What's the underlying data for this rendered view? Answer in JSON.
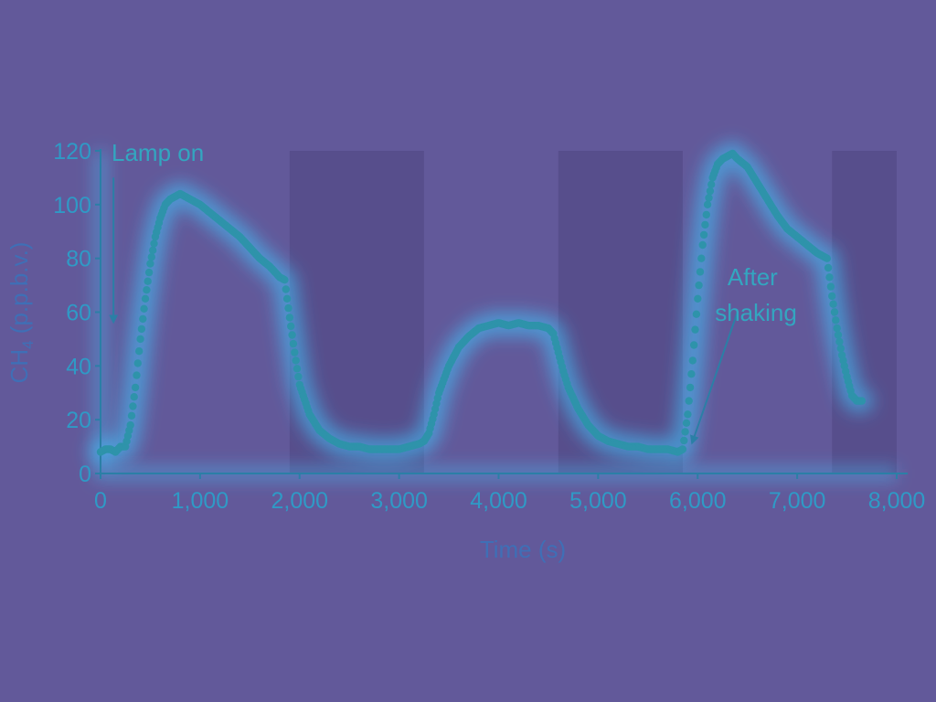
{
  "colors": {
    "background": "#62599a",
    "dark_band": "#574e8c",
    "series": "#2e93aa",
    "glow": "#3fc8ff",
    "glow_strong": "#7ef46a",
    "axis": "#2b7fa6",
    "tick_text": "#2f9ac6",
    "axis_title": "#3f6fb6"
  },
  "chart_data": {
    "type": "scatter",
    "title": "",
    "xlabel": "Time (s)",
    "ylabel_main": "CH",
    "ylabel_sub": "4",
    "ylabel_suffix": " (p.p.b.v.)",
    "xlim": [
      0,
      8000
    ],
    "ylim": [
      0,
      120
    ],
    "x_ticks": [
      0,
      1000,
      2000,
      3000,
      4000,
      5000,
      6000,
      7000,
      8000
    ],
    "x_tick_labels": [
      "0",
      "1,000",
      "2,000",
      "3,000",
      "4,000",
      "5,000",
      "6,000",
      "7,000",
      "8,000"
    ],
    "y_ticks": [
      0,
      20,
      40,
      60,
      80,
      100,
      120
    ],
    "y_tick_labels": [
      "0",
      "20",
      "40",
      "60",
      "80",
      "100",
      "120"
    ],
    "grid": false,
    "legend": "none",
    "dark_periods": [
      [
        1900,
        3250
      ],
      [
        4600,
        5850
      ],
      [
        7350,
        8000
      ]
    ],
    "annotations": [
      {
        "text": "Lamp on",
        "arrow_from": [
          130,
          110
        ],
        "arrow_to": [
          130,
          57
        ]
      },
      {
        "text": "After shaking",
        "lines": [
          "After",
          "shaking"
        ],
        "arrow_from": [
          6400,
          60
        ],
        "arrow_to": [
          5950,
          12
        ]
      }
    ],
    "series": [
      {
        "x": [
          0,
          50,
          100,
          150,
          200,
          250,
          300,
          350,
          400,
          450,
          500,
          550,
          600,
          650,
          700,
          750,
          800,
          850,
          900,
          1000,
          1100,
          1200,
          1300,
          1400,
          1500,
          1600,
          1700,
          1750,
          1800,
          1850,
          1900,
          1950,
          2000,
          2100,
          2200,
          2300,
          2400,
          2500,
          2600,
          2700,
          2800,
          2900,
          3000,
          3100,
          3200,
          3250,
          3300,
          3350,
          3400,
          3500,
          3600,
          3700,
          3800,
          3900,
          4000,
          4100,
          4200,
          4300,
          4400,
          4500,
          4550,
          4600,
          4650,
          4700,
          4800,
          4900,
          5000,
          5100,
          5200,
          5300,
          5400,
          5500,
          5600,
          5700,
          5800,
          5850,
          5900,
          5950,
          6000,
          6050,
          6100,
          6150,
          6200,
          6250,
          6300,
          6350,
          6400,
          6500,
          6600,
          6700,
          6800,
          6900,
          7000,
          7100,
          7200,
          7300,
          7350,
          7400,
          7450,
          7500,
          7550,
          7600,
          7650
        ],
        "y": [
          8,
          9,
          9,
          8,
          10,
          10,
          18,
          32,
          50,
          65,
          78,
          88,
          95,
          100,
          102,
          103,
          104,
          103,
          102,
          100,
          97,
          94,
          91,
          88,
          84,
          80,
          77,
          75,
          73,
          72,
          58,
          45,
          33,
          22,
          16,
          13,
          11,
          10,
          10,
          9,
          9,
          9,
          9,
          10,
          11,
          12,
          15,
          22,
          30,
          40,
          47,
          51,
          54,
          55,
          56,
          55,
          56,
          55,
          55,
          54,
          52,
          45,
          38,
          32,
          24,
          18,
          14,
          12,
          11,
          10,
          10,
          9,
          9,
          9,
          8,
          9,
          22,
          42,
          65,
          85,
          100,
          110,
          115,
          117,
          118,
          119,
          117,
          114,
          108,
          102,
          96,
          91,
          88,
          85,
          82,
          80,
          66,
          54,
          44,
          36,
          29,
          27,
          27
        ]
      }
    ]
  }
}
